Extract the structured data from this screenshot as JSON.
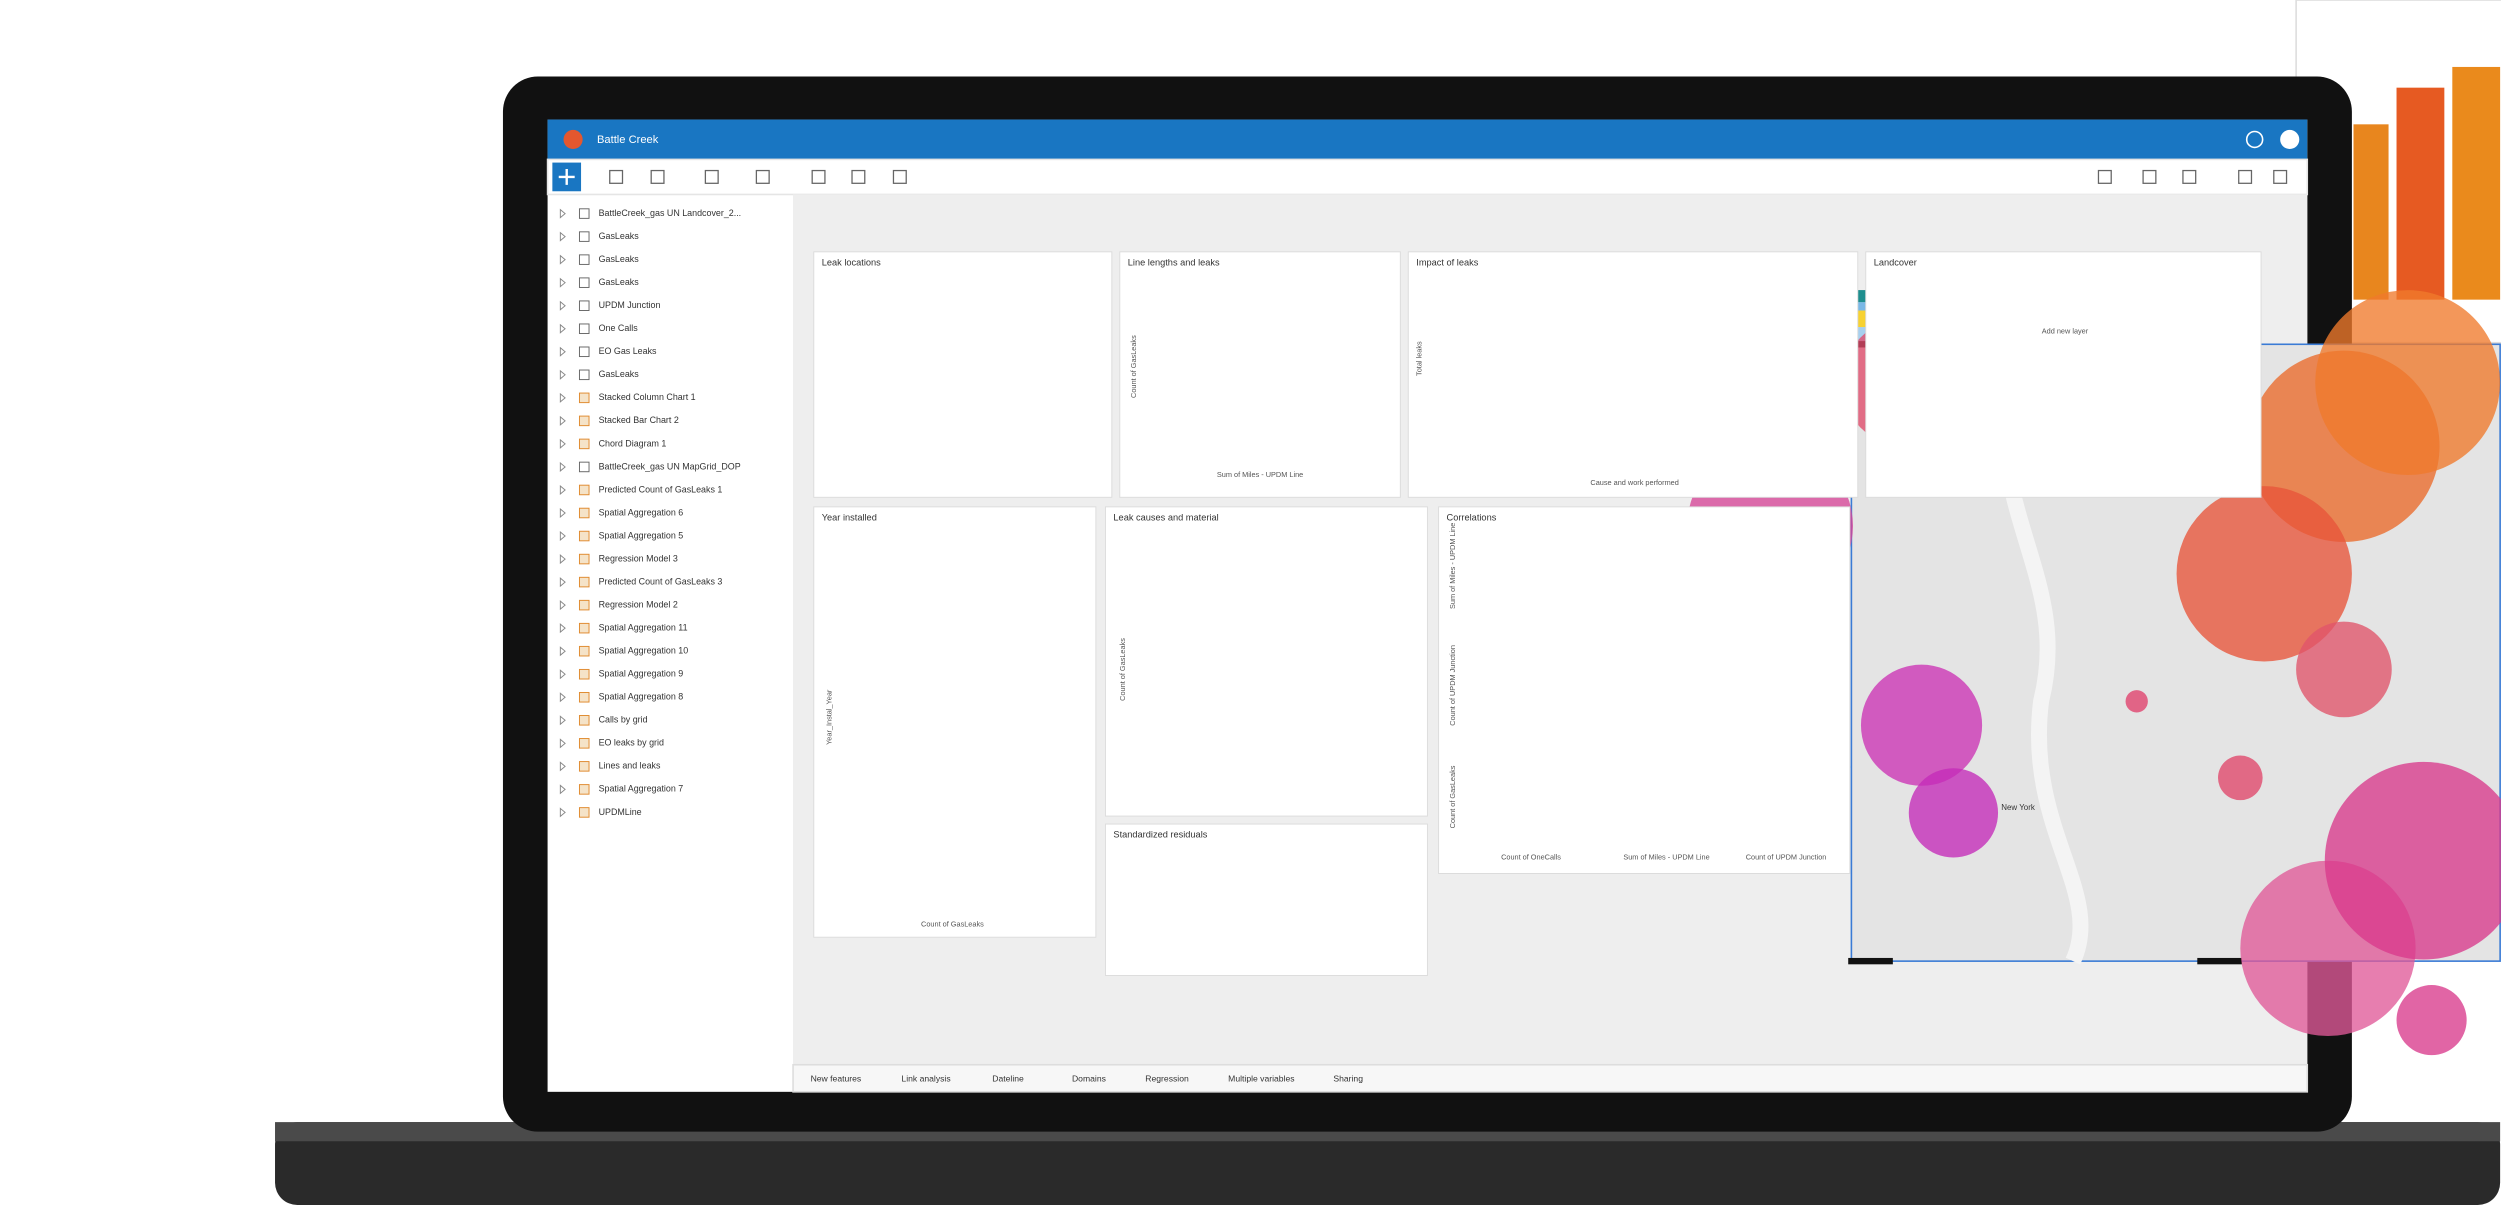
{
  "app": {
    "title": "Battle Creek"
  },
  "sidebar": {
    "items": [
      "BattleCreek_gas UN Landcover_2...",
      "GasLeaks",
      "GasLeaks",
      "GasLeaks",
      "UPDM Junction",
      "One Calls",
      "EO Gas Leaks",
      "GasLeaks",
      "Stacked Column Chart 1",
      "Stacked Bar Chart 2",
      "Chord Diagram 1",
      "BattleCreek_gas UN MapGrid_DOP",
      "Predicted Count of GasLeaks 1",
      "Spatial Aggregation 6",
      "Spatial Aggregation 5",
      "Regression Model 3",
      "Predicted Count of GasLeaks 3",
      "Regression Model 2",
      "Spatial Aggregation 11",
      "Spatial Aggregation 10",
      "Spatial Aggregation 9",
      "Spatial Aggregation 8",
      "Calls by grid",
      "EO leaks by grid",
      "Lines and leaks",
      "Spatial Aggregation 7",
      "UPDMLine"
    ]
  },
  "cards": [
    {
      "title": "Leak locations",
      "axis_labels": []
    },
    {
      "title": "Line lengths and leaks",
      "axis_labels": [
        "Count of GasLeaks",
        "Sum of Miles - UPDM Line"
      ]
    },
    {
      "title": "Impact of leaks",
      "axis_labels": [
        "Total leaks",
        "Cause and work performed"
      ]
    },
    {
      "title": "Landcover",
      "axis_labels": [
        "Add new layer"
      ]
    },
    {
      "title": "Year installed",
      "axis_labels": [
        "Year_Instal_Year",
        "Count of GasLeaks"
      ]
    },
    {
      "title": "Leak causes and material",
      "axis_labels": [
        "Count of GasLeaks"
      ]
    },
    {
      "title": "Correlations",
      "axis_labels": [
        "Sum of Miles - UPDM Line",
        "Count of UPDM Junction",
        "Count of GasLeaks",
        "Count of OneCalls",
        "Sum of Miles - UPDM Line",
        "Count of UPDM Junction"
      ]
    },
    {
      "title": "Standardized residuals",
      "axis_labels": []
    }
  ],
  "tabs": [
    "New features",
    "Link analysis",
    "Dateline",
    "Domains",
    "Regression",
    "Multiple variables",
    "Sharing"
  ],
  "map": {
    "labels": [
      "New York"
    ]
  }
}
